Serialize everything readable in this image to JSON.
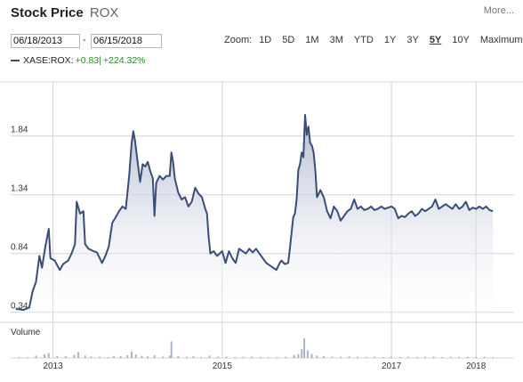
{
  "header": {
    "title": "Stock Price",
    "symbol": "ROX",
    "more_label": "More..."
  },
  "range": {
    "from": "06/18/2013",
    "separator": "-",
    "to": "06/15/2018"
  },
  "zoom": {
    "label": "Zoom:",
    "options": [
      "1D",
      "5D",
      "1M",
      "3M",
      "YTD",
      "1Y",
      "3Y",
      "5Y",
      "10Y",
      "Maximum"
    ],
    "active": "5Y"
  },
  "legend": {
    "symbol": "XASE:ROX:",
    "change": "+0.83",
    "separator": "|",
    "percent": "+224.32%"
  },
  "colors": {
    "line": "#3a4d74",
    "fill_top": "#a9b4cc",
    "fill_bottom": "#ffffff",
    "volume": "#aab4c8",
    "grid": "#d4d4d4",
    "positive": "#2a8a2a"
  },
  "chart_data": {
    "type": "area",
    "volume_label": "Volume",
    "y_ticks": [
      "1.84",
      "1.34",
      "0.84",
      "0.34"
    ],
    "y_tick_values": [
      1.84,
      1.34,
      0.84,
      0.34
    ],
    "ylim": [
      0.3,
      2.3
    ],
    "x_ticks": [
      "2013",
      "2015",
      "2017",
      "2018"
    ],
    "x_tick_dates": [
      2013.0,
      2015.0,
      2017.0,
      2018.0
    ],
    "xlim": [
      2012.5,
      2018.45
    ],
    "grid": true,
    "series": [
      {
        "values": [
          [
            2012.56,
            0.37
          ],
          [
            2012.65,
            0.36
          ],
          [
            2012.72,
            0.38
          ],
          [
            2012.76,
            0.52
          ],
          [
            2012.8,
            0.6
          ],
          [
            2012.84,
            0.82
          ],
          [
            2012.87,
            0.72
          ],
          [
            2012.91,
            0.9
          ],
          [
            2012.95,
            1.05
          ],
          [
            2012.97,
            0.8
          ],
          [
            2013.02,
            0.78
          ],
          [
            2013.08,
            0.7
          ],
          [
            2013.12,
            0.75
          ],
          [
            2013.18,
            0.78
          ],
          [
            2013.22,
            0.84
          ],
          [
            2013.26,
            0.92
          ],
          [
            2013.28,
            1.28
          ],
          [
            2013.32,
            1.18
          ],
          [
            2013.36,
            1.2
          ],
          [
            2013.38,
            0.92
          ],
          [
            2013.42,
            0.88
          ],
          [
            2013.48,
            0.86
          ],
          [
            2013.52,
            0.85
          ],
          [
            2013.58,
            0.76
          ],
          [
            2013.62,
            0.82
          ],
          [
            2013.66,
            0.9
          ],
          [
            2013.7,
            1.1
          ],
          [
            2013.75,
            1.16
          ],
          [
            2013.78,
            1.2
          ],
          [
            2013.82,
            1.24
          ],
          [
            2013.86,
            1.22
          ],
          [
            2013.9,
            1.5
          ],
          [
            2013.93,
            1.78
          ],
          [
            2013.95,
            1.88
          ],
          [
            2013.97,
            1.8
          ],
          [
            2014.0,
            1.62
          ],
          [
            2014.03,
            1.45
          ],
          [
            2014.06,
            1.6
          ],
          [
            2014.09,
            1.58
          ],
          [
            2014.12,
            1.62
          ],
          [
            2014.15,
            1.54
          ],
          [
            2014.18,
            1.48
          ],
          [
            2014.2,
            1.16
          ],
          [
            2014.22,
            1.44
          ],
          [
            2014.26,
            1.5
          ],
          [
            2014.3,
            1.47
          ],
          [
            2014.34,
            1.5
          ],
          [
            2014.38,
            1.5
          ],
          [
            2014.4,
            1.7
          ],
          [
            2014.42,
            1.62
          ],
          [
            2014.44,
            1.48
          ],
          [
            2014.48,
            1.36
          ],
          [
            2014.52,
            1.3
          ],
          [
            2014.56,
            1.32
          ],
          [
            2014.6,
            1.24
          ],
          [
            2014.64,
            1.28
          ],
          [
            2014.68,
            1.4
          ],
          [
            2014.72,
            1.35
          ],
          [
            2014.76,
            1.32
          ],
          [
            2014.8,
            1.22
          ],
          [
            2014.82,
            1.18
          ],
          [
            2014.84,
            0.98
          ],
          [
            2014.86,
            0.84
          ],
          [
            2014.9,
            0.86
          ],
          [
            2014.94,
            0.82
          ],
          [
            2015.0,
            0.86
          ],
          [
            2015.04,
            0.76
          ],
          [
            2015.08,
            0.86
          ],
          [
            2015.12,
            0.8
          ],
          [
            2015.16,
            0.76
          ],
          [
            2015.2,
            0.88
          ],
          [
            2015.24,
            0.86
          ],
          [
            2015.28,
            0.84
          ],
          [
            2015.32,
            0.88
          ],
          [
            2015.36,
            0.85
          ],
          [
            2015.4,
            0.88
          ],
          [
            2015.44,
            0.84
          ],
          [
            2015.48,
            0.8
          ],
          [
            2015.52,
            0.76
          ],
          [
            2015.56,
            0.74
          ],
          [
            2015.6,
            0.72
          ],
          [
            2015.64,
            0.7
          ],
          [
            2015.68,
            0.76
          ],
          [
            2015.7,
            0.78
          ],
          [
            2015.74,
            0.75
          ],
          [
            2015.78,
            0.76
          ],
          [
            2015.8,
            0.88
          ],
          [
            2015.84,
            1.15
          ],
          [
            2015.86,
            1.18
          ],
          [
            2015.88,
            1.3
          ],
          [
            2015.9,
            1.55
          ],
          [
            2015.92,
            1.6
          ],
          [
            2015.94,
            1.7
          ],
          [
            2015.96,
            1.66
          ],
          [
            2015.98,
            2.02
          ],
          [
            2016.0,
            1.85
          ],
          [
            2016.02,
            1.92
          ],
          [
            2016.04,
            1.78
          ],
          [
            2016.06,
            1.76
          ],
          [
            2016.08,
            1.7
          ],
          [
            2016.1,
            1.55
          ],
          [
            2016.12,
            1.32
          ],
          [
            2016.16,
            1.38
          ],
          [
            2016.2,
            1.32
          ],
          [
            2016.24,
            1.2
          ],
          [
            2016.28,
            1.14
          ],
          [
            2016.32,
            1.24
          ],
          [
            2016.36,
            1.2
          ],
          [
            2016.4,
            1.12
          ],
          [
            2016.44,
            1.16
          ],
          [
            2016.48,
            1.2
          ],
          [
            2016.52,
            1.22
          ],
          [
            2016.56,
            1.3
          ],
          [
            2016.6,
            1.22
          ],
          [
            2016.64,
            1.24
          ],
          [
            2016.68,
            1.21
          ],
          [
            2016.72,
            1.22
          ],
          [
            2016.76,
            1.24
          ],
          [
            2016.8,
            1.21
          ],
          [
            2016.84,
            1.22
          ],
          [
            2016.88,
            1.24
          ],
          [
            2016.92,
            1.22
          ],
          [
            2016.96,
            1.23
          ],
          [
            2017.0,
            1.24
          ],
          [
            2017.04,
            1.22
          ],
          [
            2017.08,
            1.14
          ],
          [
            2017.12,
            1.16
          ],
          [
            2017.16,
            1.15
          ],
          [
            2017.2,
            1.18
          ],
          [
            2017.24,
            1.2
          ],
          [
            2017.28,
            1.16
          ],
          [
            2017.32,
            1.18
          ],
          [
            2017.36,
            1.22
          ],
          [
            2017.4,
            1.2
          ],
          [
            2017.44,
            1.22
          ],
          [
            2017.48,
            1.24
          ],
          [
            2017.52,
            1.3
          ],
          [
            2017.56,
            1.22
          ],
          [
            2017.6,
            1.24
          ],
          [
            2017.64,
            1.26
          ],
          [
            2017.68,
            1.24
          ],
          [
            2017.72,
            1.22
          ],
          [
            2017.76,
            1.26
          ],
          [
            2017.8,
            1.22
          ],
          [
            2017.84,
            1.24
          ],
          [
            2017.88,
            1.28
          ],
          [
            2017.92,
            1.21
          ],
          [
            2017.96,
            1.23
          ],
          [
            2018.0,
            1.22
          ],
          [
            2018.04,
            1.24
          ],
          [
            2018.08,
            1.22
          ],
          [
            2018.12,
            1.24
          ],
          [
            2018.16,
            1.21
          ],
          [
            2018.2,
            1.2
          ]
        ]
      }
    ],
    "volume": [
      [
        2012.6,
        0.05
      ],
      [
        2012.7,
        0.04
      ],
      [
        2012.8,
        0.12
      ],
      [
        2012.9,
        0.18
      ],
      [
        2012.95,
        0.25
      ],
      [
        2013.05,
        0.1
      ],
      [
        2013.15,
        0.08
      ],
      [
        2013.25,
        0.15
      ],
      [
        2013.3,
        0.3
      ],
      [
        2013.38,
        0.12
      ],
      [
        2013.45,
        0.08
      ],
      [
        2013.55,
        0.06
      ],
      [
        2013.65,
        0.05
      ],
      [
        2013.72,
        0.1
      ],
      [
        2013.8,
        0.09
      ],
      [
        2013.88,
        0.14
      ],
      [
        2013.93,
        0.32
      ],
      [
        2013.98,
        0.18
      ],
      [
        2014.05,
        0.1
      ],
      [
        2014.12,
        0.08
      ],
      [
        2014.2,
        0.14
      ],
      [
        2014.3,
        0.07
      ],
      [
        2014.38,
        0.12
      ],
      [
        2014.4,
        0.85
      ],
      [
        2014.48,
        0.1
      ],
      [
        2014.58,
        0.06
      ],
      [
        2014.66,
        0.08
      ],
      [
        2014.75,
        0.05
      ],
      [
        2014.85,
        0.12
      ],
      [
        2014.95,
        0.06
      ],
      [
        2015.05,
        0.07
      ],
      [
        2015.15,
        0.05
      ],
      [
        2015.25,
        0.06
      ],
      [
        2015.35,
        0.07
      ],
      [
        2015.45,
        0.05
      ],
      [
        2015.55,
        0.04
      ],
      [
        2015.65,
        0.05
      ],
      [
        2015.75,
        0.06
      ],
      [
        2015.85,
        0.15
      ],
      [
        2015.9,
        0.2
      ],
      [
        2015.94,
        0.45
      ],
      [
        2015.97,
        1.0
      ],
      [
        2016.01,
        0.38
      ],
      [
        2016.06,
        0.2
      ],
      [
        2016.12,
        0.12
      ],
      [
        2016.2,
        0.09
      ],
      [
        2016.3,
        0.07
      ],
      [
        2016.4,
        0.06
      ],
      [
        2016.5,
        0.08
      ],
      [
        2016.6,
        0.06
      ],
      [
        2016.7,
        0.05
      ],
      [
        2016.8,
        0.06
      ],
      [
        2016.9,
        0.05
      ],
      [
        2017.0,
        0.06
      ],
      [
        2017.1,
        0.05
      ],
      [
        2017.2,
        0.06
      ],
      [
        2017.3,
        0.05
      ],
      [
        2017.4,
        0.06
      ],
      [
        2017.5,
        0.07
      ],
      [
        2017.6,
        0.05
      ],
      [
        2017.7,
        0.06
      ],
      [
        2017.8,
        0.05
      ],
      [
        2017.9,
        0.06
      ],
      [
        2018.0,
        0.05
      ],
      [
        2018.1,
        0.06
      ],
      [
        2018.2,
        0.05
      ]
    ]
  }
}
